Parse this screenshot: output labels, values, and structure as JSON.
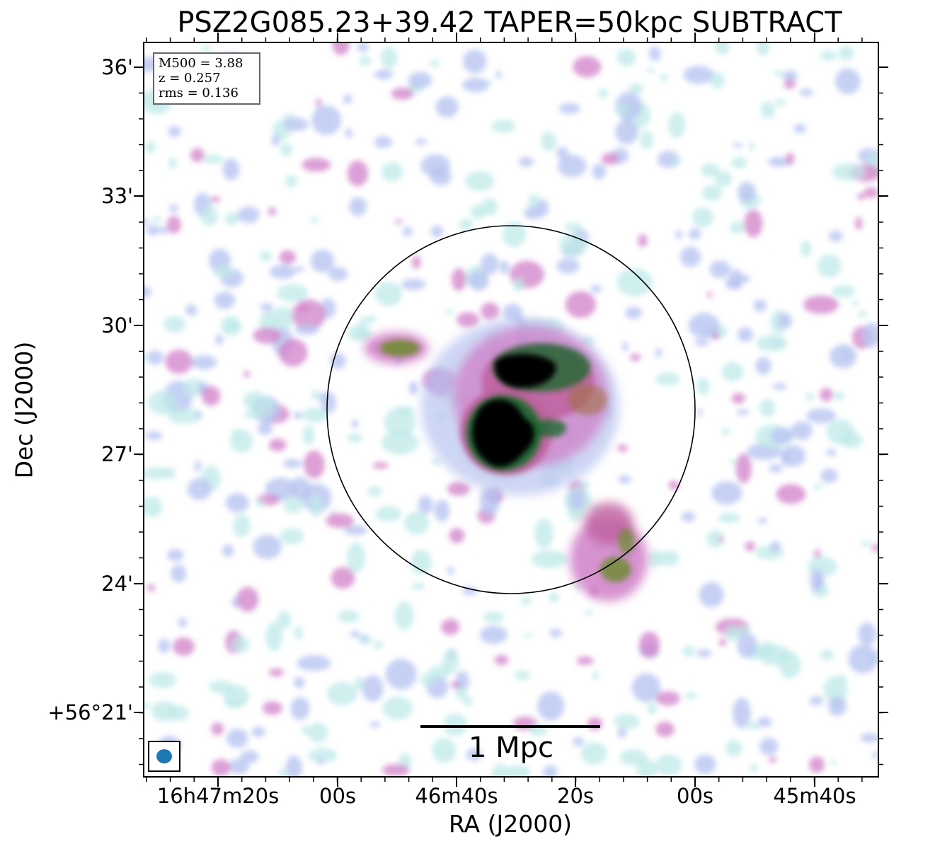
{
  "figure": {
    "title": "PSZ2G085.23+39.42 TAPER=50kpc SUBTRACT",
    "xlabel": "RA (J2000)",
    "ylabel": "Dec (J2000)",
    "xticks": [
      "16h47m20s",
      "00s",
      "46m40s",
      "20s",
      "00s",
      "45m40s"
    ],
    "yticks": [
      "36'",
      "33'",
      "30'",
      "27'",
      "24'",
      "+56°21'"
    ],
    "info": {
      "m500": "M500 = 3.88",
      "z": "z = 0.257",
      "rms": "rms = 0.136"
    },
    "scalebar_label": "1 Mpc",
    "colormap": [
      "#ffffff",
      "#bfe8e8",
      "#b8c4f0",
      "#d080c8",
      "#c060a0",
      "#6a8a2a",
      "#1a6a30",
      "#000000"
    ],
    "circle_color": "#000000",
    "beam_color": "#1f77b4"
  }
}
